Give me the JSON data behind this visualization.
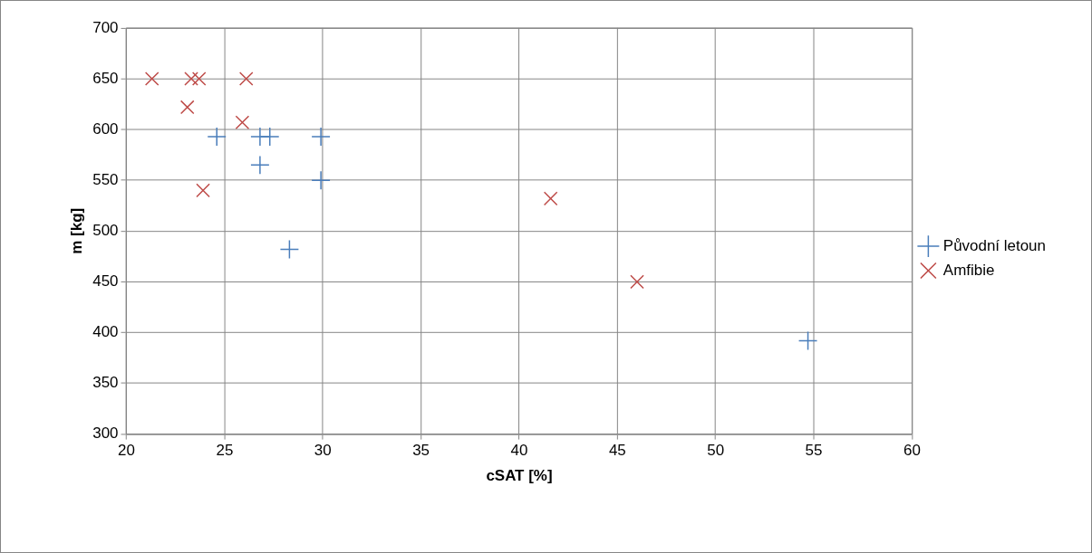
{
  "chart_data": {
    "type": "scatter",
    "xlabel": "cSAT [%]",
    "ylabel": "m [kg]",
    "xlim": [
      20,
      60
    ],
    "xticks": [
      20,
      25,
      30,
      35,
      40,
      45,
      50,
      55,
      60
    ],
    "ylim": [
      300,
      700
    ],
    "yticks": [
      300,
      350,
      400,
      450,
      500,
      550,
      600,
      650,
      700
    ],
    "grid": true,
    "legend": "right",
    "series": [
      {
        "name": "Původní letoun",
        "color": "#4a7ebb",
        "marker": "cross",
        "x": [
          24.6,
          26.8,
          27.3,
          29.9,
          26.8,
          29.9,
          28.3,
          54.7
        ],
        "values": [
          593,
          593,
          593,
          593,
          565,
          550,
          482,
          392
        ]
      },
      {
        "name": "Amfibie",
        "color": "#be4b48",
        "marker": "x",
        "x": [
          21.3,
          23.3,
          23.7,
          26.1,
          23.1,
          25.9,
          23.9,
          41.6,
          46
        ],
        "values": [
          650,
          650,
          650,
          650,
          622,
          607,
          540,
          532,
          450
        ]
      }
    ]
  }
}
